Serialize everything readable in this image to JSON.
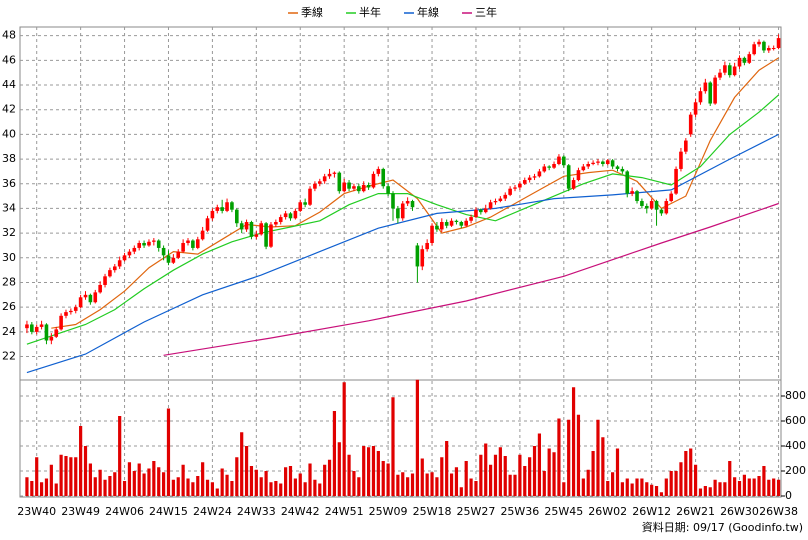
{
  "chart_data": {
    "type": "candlestick",
    "legend_position": "top",
    "grid": true,
    "categories": [
      null,
      null,
      "23W40",
      null,
      null,
      null,
      null,
      null,
      null,
      null,
      null,
      "23W49",
      null,
      null,
      null,
      null,
      null,
      null,
      null,
      null,
      "24W06",
      null,
      null,
      null,
      null,
      null,
      null,
      null,
      null,
      "24W15",
      null,
      null,
      null,
      null,
      null,
      null,
      null,
      null,
      "24W24",
      null,
      null,
      null,
      null,
      null,
      null,
      null,
      null,
      "24W33",
      null,
      null,
      null,
      null,
      null,
      null,
      null,
      null,
      "24W42",
      null,
      null,
      null,
      null,
      null,
      null,
      null,
      null,
      "24W51",
      null,
      null,
      null,
      null,
      null,
      null,
      null,
      null,
      "25W09",
      null,
      null,
      null,
      null,
      null,
      null,
      null,
      null,
      "25W18",
      null,
      null,
      null,
      null,
      null,
      null,
      null,
      null,
      "25W27",
      null,
      null,
      null,
      null,
      null,
      null,
      null,
      null,
      "25W36",
      null,
      null,
      null,
      null,
      null,
      null,
      null,
      null,
      "25W45",
      null,
      null,
      null,
      null,
      null,
      null,
      null,
      null,
      "26W02",
      null,
      null,
      null,
      null,
      null,
      null,
      null,
      null,
      "26W12",
      null,
      null,
      null,
      null,
      null,
      null,
      null,
      null,
      "26W21",
      null,
      null,
      null,
      null,
      null,
      null,
      null,
      null,
      "26W30",
      null,
      null,
      null,
      null,
      null,
      null,
      null,
      "26W38"
    ],
    "ylim": [
      20.1,
      48.7
    ],
    "yticks": [
      22,
      24,
      26,
      28,
      30,
      32,
      34,
      36,
      38,
      40,
      42,
      44,
      46,
      48
    ],
    "up_color": "#ff0000",
    "down_color": "#00a000",
    "candles": [
      [
        24.3,
        24.9,
        23.9,
        24.6
      ],
      [
        24.6,
        24.8,
        23.8,
        24.0
      ],
      [
        24.0,
        24.6,
        23.8,
        24.4
      ],
      [
        24.4,
        24.9,
        24.2,
        24.6
      ],
      [
        24.6,
        24.7,
        23.0,
        23.3
      ],
      [
        23.3,
        23.9,
        23.0,
        23.6
      ],
      [
        23.6,
        24.4,
        23.5,
        24.2
      ],
      [
        24.2,
        25.5,
        24.1,
        25.3
      ],
      [
        25.3,
        25.8,
        25.1,
        25.6
      ],
      [
        25.6,
        25.9,
        25.4,
        25.7
      ],
      [
        25.7,
        26.2,
        25.5,
        26.0
      ],
      [
        26.0,
        27.0,
        25.9,
        26.8
      ],
      [
        26.8,
        27.3,
        26.6,
        27.0
      ],
      [
        27.0,
        27.1,
        26.2,
        26.4
      ],
      [
        26.4,
        27.4,
        26.3,
        27.2
      ],
      [
        27.2,
        28.1,
        27.1,
        27.8
      ],
      [
        27.8,
        28.7,
        27.6,
        28.5
      ],
      [
        28.5,
        29.2,
        28.4,
        29.0
      ],
      [
        29.0,
        29.5,
        28.8,
        29.3
      ],
      [
        29.3,
        30.1,
        29.1,
        29.8
      ],
      [
        29.8,
        30.4,
        29.7,
        30.2
      ],
      [
        30.2,
        30.7,
        30.0,
        30.5
      ],
      [
        30.5,
        31.0,
        30.3,
        30.8
      ],
      [
        30.8,
        31.4,
        30.6,
        31.2
      ],
      [
        31.2,
        31.4,
        30.8,
        31.0
      ],
      [
        31.0,
        31.5,
        30.9,
        31.3
      ],
      [
        31.3,
        31.6,
        31.0,
        31.4
      ],
      [
        31.4,
        31.5,
        30.5,
        30.8
      ],
      [
        30.8,
        31.0,
        29.8,
        30.2
      ],
      [
        30.2,
        30.6,
        29.4,
        29.6
      ],
      [
        29.6,
        30.3,
        29.5,
        30.0
      ],
      [
        30.0,
        30.7,
        29.9,
        30.5
      ],
      [
        30.5,
        31.5,
        30.4,
        31.2
      ],
      [
        31.2,
        31.6,
        31.0,
        31.4
      ],
      [
        31.4,
        31.5,
        30.6,
        30.8
      ],
      [
        30.8,
        31.7,
        30.7,
        31.5
      ],
      [
        31.5,
        32.5,
        31.4,
        32.2
      ],
      [
        32.2,
        33.4,
        32.1,
        33.2
      ],
      [
        33.2,
        34.0,
        33.0,
        33.8
      ],
      [
        33.8,
        34.3,
        33.6,
        34.1
      ],
      [
        34.1,
        34.7,
        33.6,
        33.8
      ],
      [
        33.8,
        34.8,
        33.7,
        34.5
      ],
      [
        34.5,
        34.6,
        33.7,
        33.9
      ],
      [
        33.9,
        34.0,
        32.5,
        32.8
      ],
      [
        32.8,
        33.0,
        32.0,
        32.3
      ],
      [
        32.3,
        33.1,
        32.1,
        32.9
      ],
      [
        32.9,
        33.0,
        31.5,
        31.7
      ],
      [
        31.7,
        32.2,
        31.5,
        31.9
      ],
      [
        31.9,
        33.0,
        31.8,
        32.8
      ],
      [
        32.8,
        32.9,
        30.7,
        30.9
      ],
      [
        30.9,
        32.9,
        30.8,
        32.7
      ],
      [
        32.7,
        33.1,
        32.5,
        32.9
      ],
      [
        32.9,
        33.5,
        32.7,
        33.3
      ],
      [
        33.3,
        33.8,
        33.1,
        33.6
      ],
      [
        33.6,
        33.7,
        33.0,
        33.2
      ],
      [
        33.2,
        34.0,
        33.1,
        33.8
      ],
      [
        33.8,
        34.7,
        33.7,
        34.5
      ],
      [
        34.5,
        34.8,
        34.1,
        34.3
      ],
      [
        34.3,
        35.8,
        34.2,
        35.6
      ],
      [
        35.6,
        36.2,
        35.4,
        36.0
      ],
      [
        36.0,
        36.4,
        35.8,
        36.2
      ],
      [
        36.2,
        36.8,
        36.0,
        36.6
      ],
      [
        36.6,
        37.2,
        36.4,
        36.8
      ],
      [
        36.8,
        37.0,
        36.5,
        36.9
      ],
      [
        36.9,
        37.0,
        35.2,
        35.4
      ],
      [
        35.4,
        36.4,
        35.3,
        36.1
      ],
      [
        36.1,
        36.3,
        35.4,
        35.6
      ],
      [
        35.6,
        36.0,
        35.4,
        35.8
      ],
      [
        35.8,
        36.0,
        35.2,
        35.4
      ],
      [
        35.4,
        36.2,
        35.3,
        35.9
      ],
      [
        35.9,
        36.1,
        35.5,
        35.7
      ],
      [
        35.7,
        37.0,
        35.6,
        36.8
      ],
      [
        36.8,
        37.4,
        36.6,
        37.2
      ],
      [
        37.2,
        37.3,
        35.6,
        35.8
      ],
      [
        35.8,
        36.0,
        35.0,
        35.2
      ],
      [
        35.2,
        35.4,
        33.0,
        34.0
      ],
      [
        34.0,
        34.2,
        32.8,
        33.2
      ],
      [
        33.2,
        34.6,
        33.0,
        34.4
      ],
      [
        34.4,
        34.9,
        34.2,
        34.6
      ],
      [
        34.6,
        34.7,
        33.8,
        34.1
      ],
      [
        31.0,
        31.2,
        28.0,
        29.3
      ],
      [
        29.3,
        31.0,
        29.0,
        30.7
      ],
      [
        30.7,
        31.5,
        30.5,
        31.2
      ],
      [
        31.2,
        32.8,
        31.0,
        32.6
      ],
      [
        32.6,
        32.9,
        32.1,
        32.3
      ],
      [
        32.3,
        33.2,
        32.1,
        32.9
      ],
      [
        32.9,
        33.1,
        32.4,
        32.6
      ],
      [
        32.6,
        33.2,
        32.5,
        33.0
      ],
      [
        33.0,
        33.1,
        32.7,
        32.9
      ],
      [
        32.9,
        33.0,
        32.4,
        32.6
      ],
      [
        32.6,
        33.2,
        32.5,
        33.0
      ],
      [
        33.0,
        33.5,
        32.8,
        33.3
      ],
      [
        33.3,
        34.1,
        33.2,
        33.9
      ],
      [
        33.9,
        34.0,
        33.5,
        33.7
      ],
      [
        33.7,
        34.3,
        33.6,
        34.0
      ],
      [
        34.0,
        34.7,
        33.9,
        34.5
      ],
      [
        34.5,
        34.8,
        34.3,
        34.6
      ],
      [
        34.6,
        35.0,
        34.5,
        34.8
      ],
      [
        34.8,
        35.3,
        34.6,
        35.1
      ],
      [
        35.1,
        35.8,
        35.0,
        35.6
      ],
      [
        35.6,
        35.9,
        35.4,
        35.7
      ],
      [
        35.7,
        36.2,
        35.5,
        36.0
      ],
      [
        36.0,
        36.5,
        35.9,
        36.3
      ],
      [
        36.3,
        36.7,
        36.1,
        36.5
      ],
      [
        36.5,
        36.8,
        36.3,
        36.6
      ],
      [
        36.6,
        37.2,
        36.5,
        37.0
      ],
      [
        37.0,
        37.6,
        36.9,
        37.4
      ],
      [
        37.4,
        37.5,
        37.1,
        37.3
      ],
      [
        37.3,
        37.8,
        37.2,
        37.6
      ],
      [
        37.6,
        38.4,
        37.5,
        38.2
      ],
      [
        38.2,
        38.3,
        37.3,
        37.5
      ],
      [
        37.5,
        37.6,
        35.4,
        35.6
      ],
      [
        35.6,
        36.5,
        35.5,
        36.3
      ],
      [
        36.3,
        37.3,
        36.2,
        37.1
      ],
      [
        37.1,
        37.6,
        37.0,
        37.4
      ],
      [
        37.4,
        37.8,
        37.2,
        37.6
      ],
      [
        37.6,
        37.9,
        37.5,
        37.7
      ],
      [
        37.7,
        38.0,
        37.5,
        37.8
      ],
      [
        37.8,
        37.9,
        37.4,
        37.6
      ],
      [
        37.6,
        38.0,
        37.5,
        37.9
      ],
      [
        37.9,
        38.0,
        37.2,
        37.4
      ],
      [
        37.4,
        37.5,
        37.0,
        37.2
      ],
      [
        37.2,
        37.4,
        36.8,
        37.0
      ],
      [
        37.0,
        37.1,
        34.9,
        35.2
      ],
      [
        35.2,
        35.7,
        35.0,
        35.4
      ],
      [
        35.4,
        35.5,
        34.4,
        34.6
      ],
      [
        34.6,
        34.8,
        34.0,
        34.2
      ],
      [
        34.2,
        34.4,
        33.6,
        34.0
      ],
      [
        34.0,
        34.8,
        33.9,
        34.6
      ],
      [
        34.6,
        34.7,
        32.6,
        33.9
      ],
      [
        33.9,
        34.0,
        33.4,
        33.6
      ],
      [
        33.6,
        34.8,
        33.5,
        34.6
      ],
      [
        34.6,
        35.4,
        34.5,
        35.2
      ],
      [
        35.2,
        37.4,
        35.1,
        37.2
      ],
      [
        37.2,
        38.9,
        37.0,
        38.6
      ],
      [
        38.6,
        39.7,
        38.4,
        39.5
      ],
      [
        40.0,
        41.8,
        39.8,
        41.6
      ],
      [
        41.6,
        42.9,
        41.4,
        42.6
      ],
      [
        42.6,
        43.8,
        42.4,
        43.5
      ],
      [
        43.5,
        44.5,
        43.3,
        44.2
      ],
      [
        44.2,
        44.3,
        42.3,
        42.5
      ],
      [
        42.5,
        44.8,
        42.4,
        44.6
      ],
      [
        44.6,
        45.3,
        44.4,
        45.0
      ],
      [
        45.0,
        45.9,
        44.8,
        45.6
      ],
      [
        45.6,
        45.8,
        44.6,
        44.8
      ],
      [
        44.8,
        45.8,
        44.7,
        45.5
      ],
      [
        45.5,
        46.4,
        45.3,
        46.2
      ],
      [
        46.2,
        46.3,
        45.6,
        45.8
      ],
      [
        45.8,
        46.7,
        45.7,
        46.5
      ],
      [
        46.5,
        47.5,
        46.4,
        47.3
      ],
      [
        47.3,
        47.7,
        47.1,
        47.5
      ],
      [
        47.5,
        47.6,
        46.6,
        46.8
      ],
      [
        46.8,
        47.2,
        46.6,
        47.0
      ],
      [
        47.0,
        47.2,
        46.8,
        47.0
      ],
      [
        47.0,
        48.1,
        46.9,
        47.8
      ]
    ],
    "series": [
      {
        "name": "季線",
        "color": "#e0660f",
        "x": [
          5,
          10,
          15,
          20,
          25,
          30,
          35,
          40,
          45,
          50,
          55,
          60,
          65,
          70,
          75,
          80,
          85,
          90,
          95,
          100,
          105,
          110,
          115,
          120,
          125,
          130,
          135,
          140,
          145,
          150,
          154
        ],
        "values": [
          24.3,
          24.6,
          25.8,
          27.3,
          29.2,
          30.5,
          30.3,
          31.5,
          32.7,
          32.5,
          32.6,
          33.7,
          35.2,
          35.8,
          36.3,
          34.8,
          32.0,
          32.5,
          33.3,
          34.4,
          35.5,
          36.6,
          36.9,
          37.1,
          36.2,
          34.0,
          35.0,
          39.5,
          43.0,
          45.2,
          46.2
        ]
      },
      {
        "name": "半年",
        "color": "#22cc22",
        "x": [
          0,
          6,
          12,
          18,
          24,
          30,
          36,
          42,
          48,
          54,
          60,
          66,
          72,
          78,
          84,
          90,
          96,
          102,
          108,
          114,
          120,
          126,
          132,
          138,
          144,
          150,
          154
        ],
        "values": [
          23.0,
          23.8,
          24.6,
          25.8,
          27.5,
          29.0,
          30.3,
          31.3,
          32.0,
          32.5,
          33.0,
          34.3,
          35.2,
          35.2,
          34.3,
          33.5,
          33.0,
          34.0,
          35.0,
          36.0,
          36.8,
          36.5,
          35.9,
          37.4,
          40.0,
          41.8,
          43.2
        ]
      },
      {
        "name": "年線",
        "color": "#1060d0",
        "x": [
          0,
          12,
          24,
          36,
          48,
          60,
          72,
          84,
          96,
          108,
          120,
          132,
          144,
          154
        ],
        "values": [
          20.7,
          22.2,
          24.8,
          27.0,
          28.6,
          30.5,
          32.4,
          33.6,
          34.0,
          34.8,
          35.1,
          35.5,
          38.0,
          40.0
        ]
      },
      {
        "name": "三年",
        "color": "#c8107a",
        "x": [
          28,
          50,
          70,
          90,
          110,
          130,
          140,
          154
        ],
        "values": [
          22.1,
          23.5,
          24.9,
          26.5,
          28.5,
          31.2,
          32.5,
          34.4
        ]
      }
    ],
    "volume": {
      "color": "#e00000",
      "ylim": [
        0,
        928
      ],
      "yticks": [
        0,
        200,
        400,
        600,
        800
      ],
      "values": [
        150,
        120,
        310,
        110,
        140,
        250,
        100,
        330,
        320,
        310,
        310,
        560,
        400,
        260,
        150,
        210,
        130,
        160,
        190,
        640,
        120,
        270,
        200,
        260,
        180,
        220,
        280,
        230,
        190,
        700,
        130,
        150,
        250,
        140,
        110,
        160,
        270,
        130,
        110,
        60,
        220,
        170,
        120,
        310,
        510,
        400,
        240,
        210,
        150,
        200,
        110,
        120,
        100,
        230,
        240,
        140,
        180,
        110,
        260,
        130,
        100,
        250,
        290,
        680,
        430,
        910,
        330,
        200,
        150,
        400,
        390,
        400,
        360,
        280,
        260,
        790,
        170,
        190,
        150,
        180,
        930,
        300,
        180,
        190,
        150,
        310,
        440,
        180,
        230,
        70,
        280,
        140,
        120,
        330,
        420,
        250,
        330,
        390,
        320,
        170,
        170,
        330,
        240,
        310,
        400,
        500,
        200,
        380,
        350,
        620,
        110,
        610,
        870,
        650,
        140,
        210,
        360,
        610,
        470,
        120,
        190,
        380,
        110,
        140,
        100,
        140,
        140,
        110,
        90,
        80,
        30,
        140,
        200,
        200,
        270,
        360,
        380,
        250,
        60,
        80,
        70,
        130,
        110,
        110,
        280,
        150,
        120,
        170,
        140,
        140,
        160,
        240,
        130,
        140,
        130
      ]
    }
  },
  "footer": "資料日期: 09/17  (Goodinfo.tw)"
}
